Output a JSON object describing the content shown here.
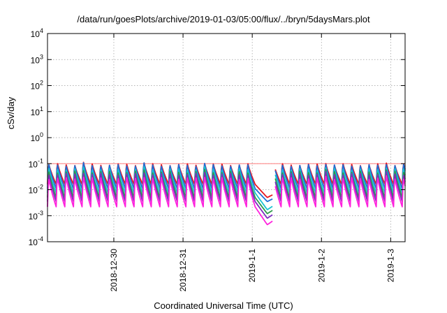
{
  "chart_data": {
    "type": "line",
    "title": "/data/run/goesPlots/archive/2019-01-03/05:00/flux/../bryn/5daysMars.plot",
    "xlabel": "Coordinated Universal Time (UTC)",
    "ylabel": "cSv/day",
    "y_scale": "log",
    "ylim": [
      0.0001,
      10000
    ],
    "y_ticks": [
      {
        "exp": "-4",
        "value": 0.0001
      },
      {
        "exp": "-3",
        "value": 0.001
      },
      {
        "exp": "-2",
        "value": 0.01
      },
      {
        "exp": "-1",
        "value": 0.1
      },
      {
        "exp": "0",
        "value": 1
      },
      {
        "exp": "1",
        "value": 10
      },
      {
        "exp": "2",
        "value": 100
      },
      {
        "exp": "3",
        "value": 1000
      },
      {
        "exp": "4",
        "value": 10000
      }
    ],
    "y_tick_base": "10",
    "xlim": [
      "2018-12-29T01:00",
      "2019-01-03T05:00"
    ],
    "x_ticks": [
      "2018-12-30",
      "2018-12-31",
      "2019-1-1",
      "2019-1-2",
      "2019-1-3"
    ],
    "grid": true,
    "reference_line": {
      "value": 0.1,
      "color": "#ff7f7f"
    },
    "spike_period_hours": 3,
    "dip": {
      "start": "2019-01-01T01:00",
      "end": "2019-01-01T07:00"
    },
    "gap": {
      "start": "2019-01-01T07:00",
      "end": "2019-01-01T08:00"
    },
    "series": [
      {
        "color": "#e8141f",
        "peak": 0.11,
        "trough": 0.016,
        "dip_min": 0.005
      },
      {
        "color": "#1e6fd8",
        "peak": 0.105,
        "trough": 0.011,
        "dip_min": 0.0035
      },
      {
        "color": "#19c4d0",
        "peak": 0.075,
        "trough": 0.0075,
        "dip_min": 0.0017
      },
      {
        "color": "#2d9a4a",
        "peak": 0.06,
        "trough": 0.005,
        "dip_min": 0.0012
      },
      {
        "color": "#7b2fbe",
        "peak": 0.05,
        "trough": 0.0035,
        "dip_min": 0.0008
      },
      {
        "color": "#ff22dd",
        "peak": 0.035,
        "trough": 0.0022,
        "dip_min": 0.00045
      }
    ]
  }
}
